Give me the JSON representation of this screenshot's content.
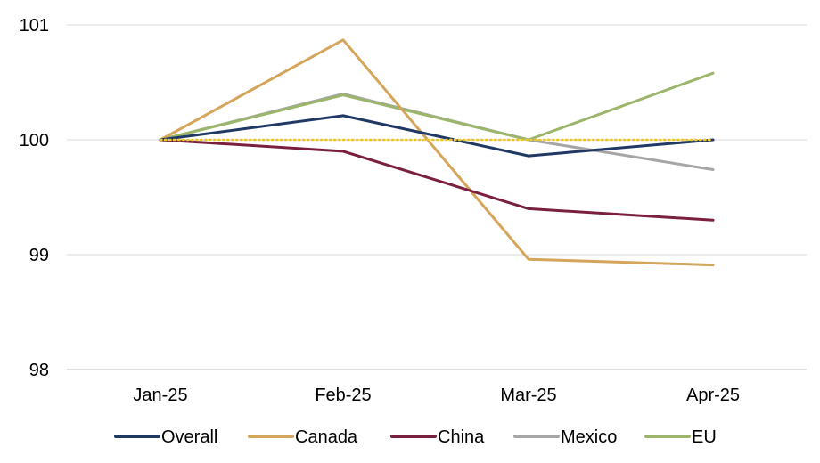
{
  "chart_data": {
    "type": "line",
    "title": "",
    "xlabel": "",
    "ylabel": "",
    "categories": [
      "Jan-25",
      "Feb-25",
      "Mar-25",
      "Apr-25"
    ],
    "ylim": [
      98,
      101
    ],
    "y_ticks": [
      "98",
      "99",
      "100",
      "101"
    ],
    "grid": "horizontal",
    "legend_position": "bottom",
    "reference_line": {
      "value": 100,
      "color": "#e9c82f",
      "style": "dotted"
    },
    "series": [
      {
        "name": "Overall",
        "color": "#1f3864",
        "values": [
          100,
          100.21,
          99.86,
          100
        ]
      },
      {
        "name": "Canada",
        "color": "#d4a55a",
        "values": [
          100,
          100.87,
          98.96,
          98.91
        ]
      },
      {
        "name": "China",
        "color": "#7b1f3f",
        "values": [
          100,
          99.9,
          99.4,
          99.3
        ]
      },
      {
        "name": "Mexico",
        "color": "#a6a6a6",
        "values": [
          100,
          100.4,
          100,
          99.74
        ]
      },
      {
        "name": "EU",
        "color": "#9bb56b",
        "values": [
          100,
          100.39,
          100,
          100.58
        ]
      }
    ],
    "draw_order": [
      "Mexico",
      "EU",
      "Canada",
      "China",
      "Overall"
    ]
  }
}
